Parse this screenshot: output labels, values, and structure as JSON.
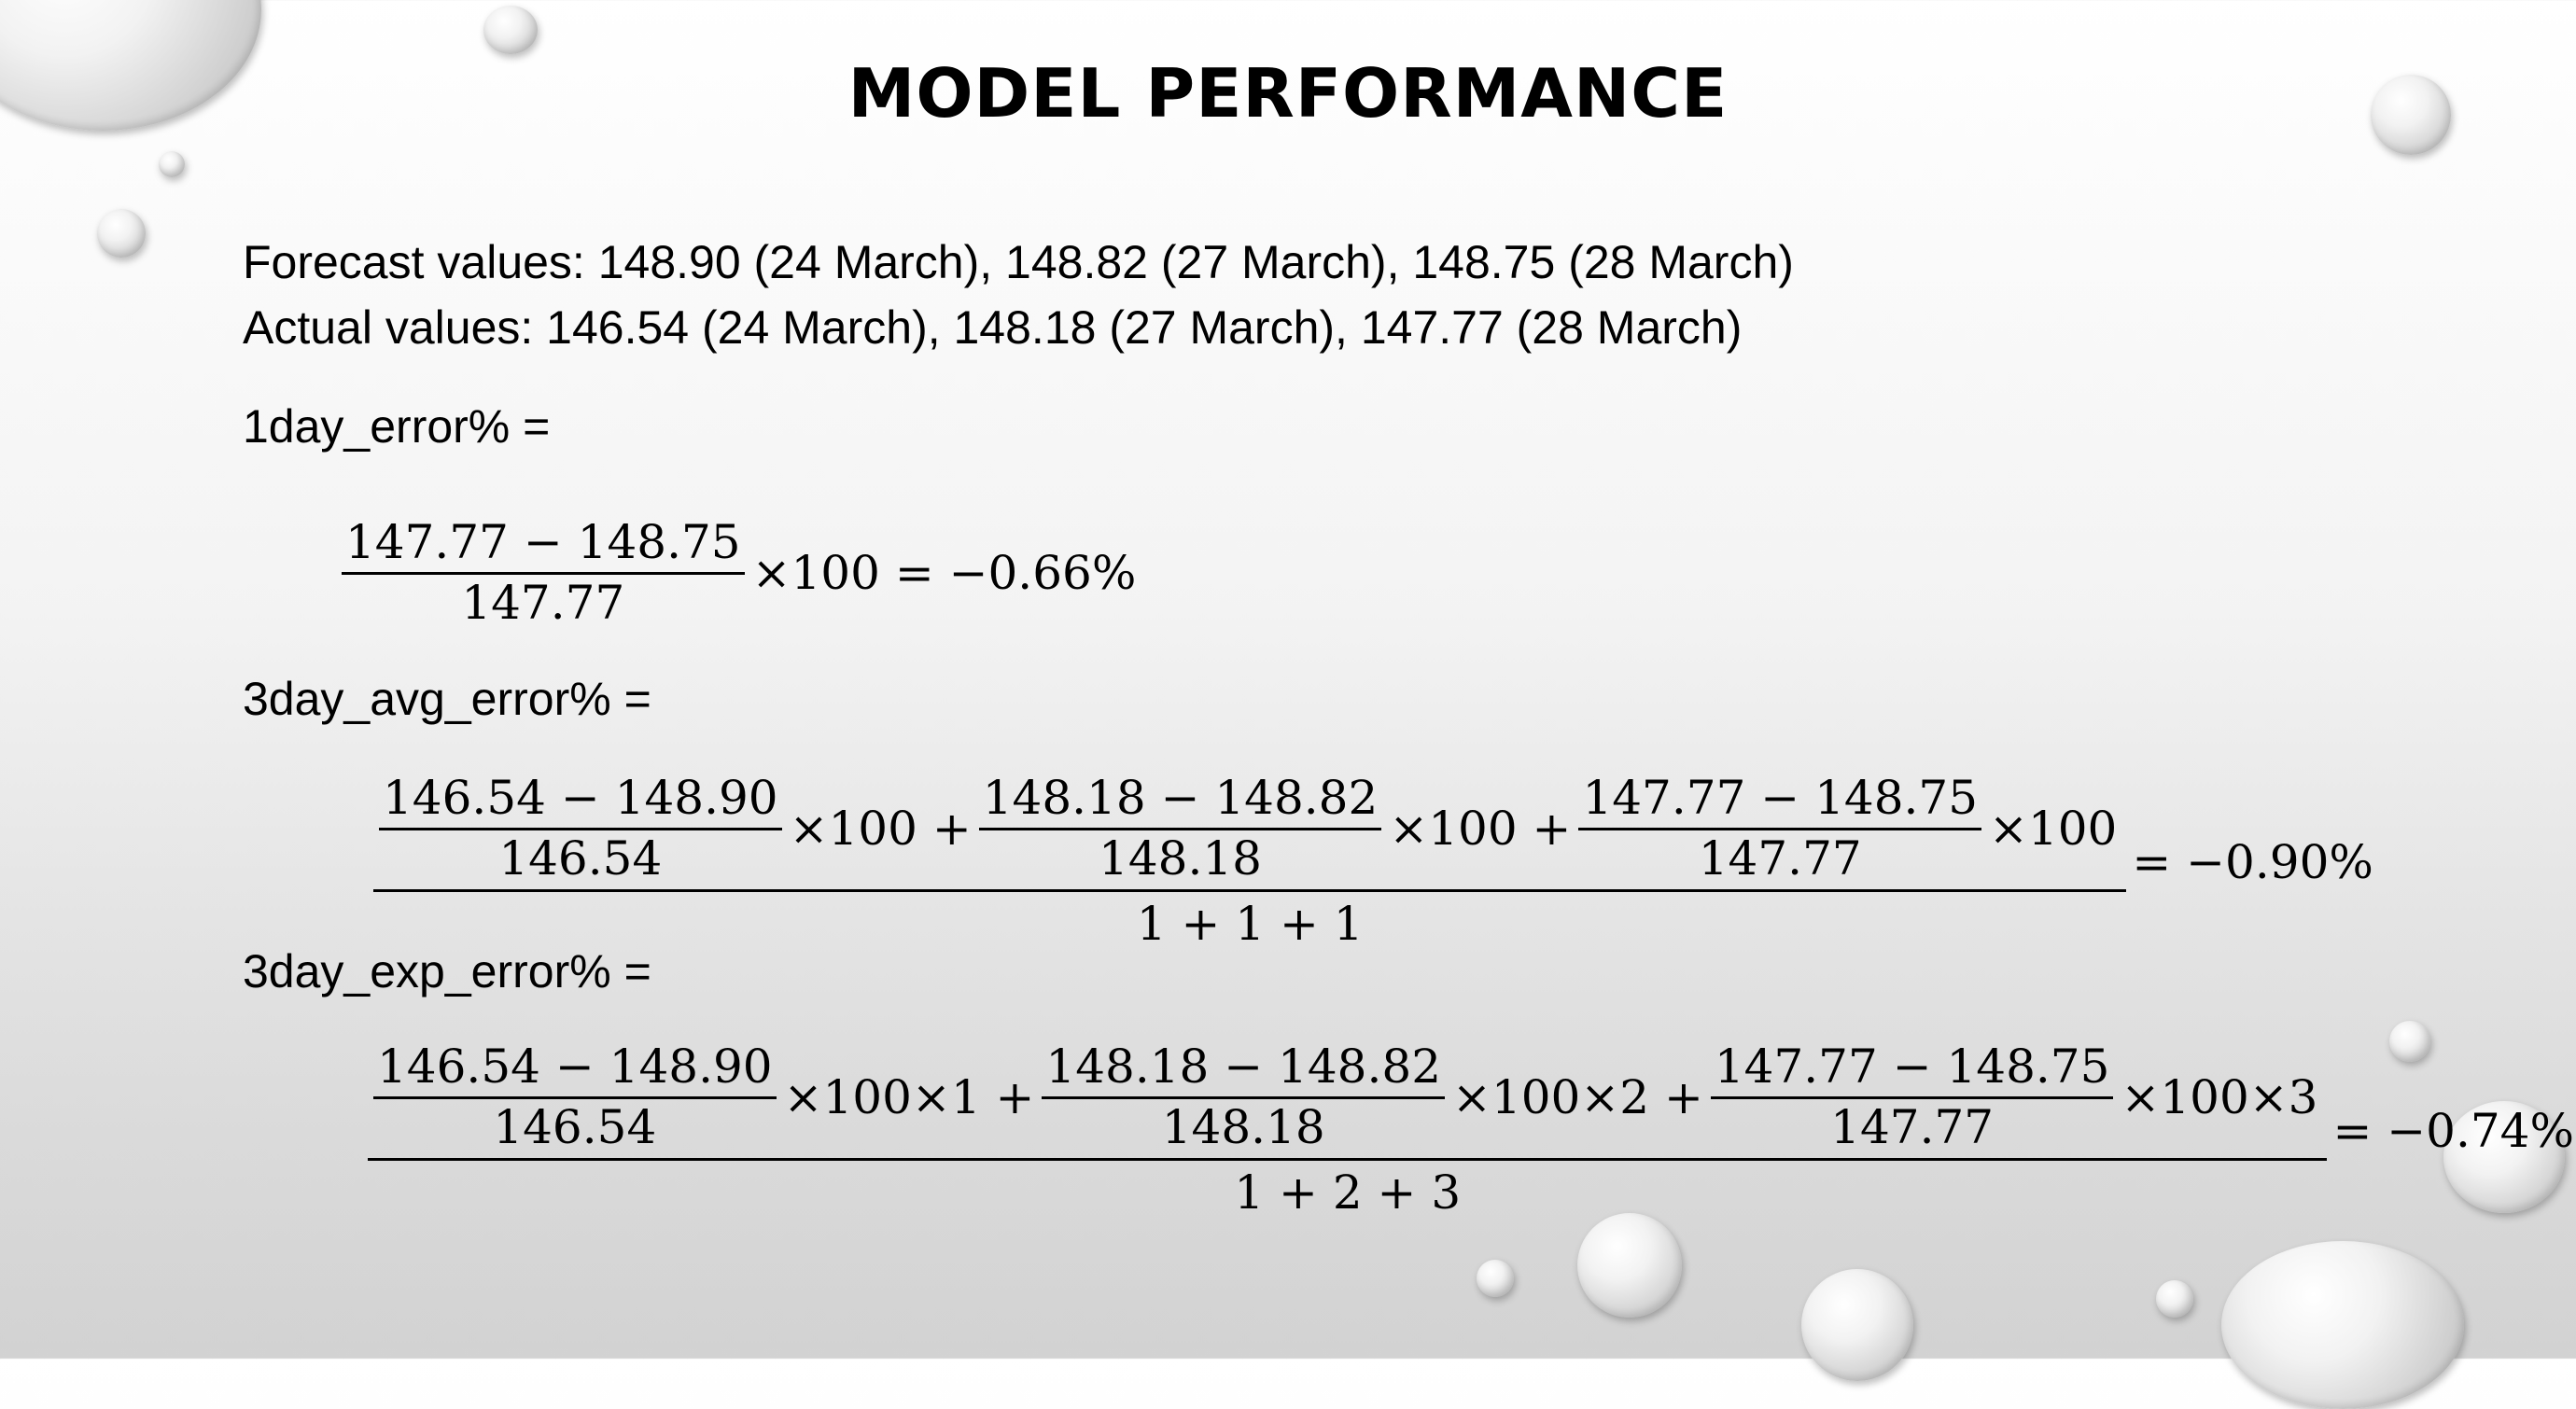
{
  "title": "MODEL PERFORMANCE",
  "forecast_line": "Forecast values: 148.90 (24 March), 148.82 (27 March), 148.75 (28 March)",
  "actual_line": "Actual values: 146.54 (24 March), 148.18 (27 March), 147.77 (28 March)",
  "one_day": {
    "label": "1day_error% =",
    "numerator": "147.77 − 148.75",
    "denominator": "147.77",
    "tail": "×100 = −0.66%"
  },
  "three_day_avg": {
    "label": "3day_avg_error% =",
    "terms": [
      {
        "numerator": "146.54 − 148.90",
        "denominator": "146.54",
        "suffix": "×100 +"
      },
      {
        "numerator": "148.18 − 148.82",
        "denominator": "148.18",
        "suffix": "×100 +"
      },
      {
        "numerator": "147.77  − 148.75",
        "denominator": "147.77",
        "suffix": "×100"
      }
    ],
    "denominator": "1 + 1 + 1",
    "result": "= −0.90%"
  },
  "three_day_exp": {
    "label": "3day_exp_error% =",
    "terms": [
      {
        "numerator": "146.54 − 148.90",
        "denominator": "146.54",
        "suffix": "×100×1 +"
      },
      {
        "numerator": "148.18 − 148.82",
        "denominator": "148.18",
        "suffix": "×100×2 +"
      },
      {
        "numerator": "147.77  − 148.75",
        "denominator": "147.77",
        "suffix": "×100×3"
      }
    ],
    "denominator": "1 + 2 + 3",
    "result": "= −0.74%"
  }
}
